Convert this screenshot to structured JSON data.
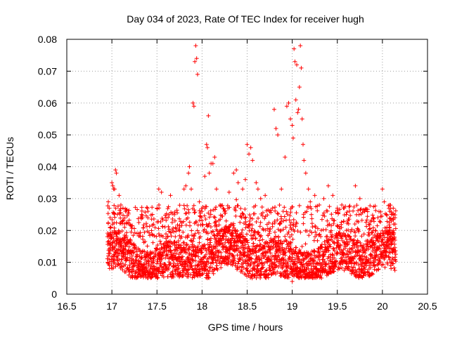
{
  "chart_data": {
    "type": "scatter",
    "title": "Day 034 of 2023, Rate Of TEC Index for receiver hugh",
    "xlabel": "GPS time / hours",
    "ylabel": "ROTI / TECUs",
    "xlim": [
      16.5,
      20.5
    ],
    "ylim": [
      0,
      0.08
    ],
    "xticks": [
      16.5,
      17,
      17.5,
      18,
      18.5,
      19,
      19.5,
      20,
      20.5
    ],
    "xtick_labels": [
      "16.5",
      "17",
      "17.5",
      "18",
      "18.5",
      "19",
      "19.5",
      "20",
      "20.5"
    ],
    "yticks": [
      0,
      0.01,
      0.02,
      0.03,
      0.04,
      0.05,
      0.06,
      0.07,
      0.08
    ],
    "ytick_labels": [
      "0",
      "0.01",
      "0.02",
      "0.03",
      "0.04",
      "0.05",
      "0.06",
      "0.07",
      "0.08"
    ],
    "grid": true,
    "marker": "+",
    "color": "#ff0000",
    "x_range_data": [
      16.95,
      20.15
    ],
    "points": [
      [
        16.96,
        0.029
      ],
      [
        16.97,
        0.027
      ],
      [
        16.98,
        0.024
      ],
      [
        16.99,
        0.021
      ],
      [
        17.0,
        0.035
      ],
      [
        17.01,
        0.034
      ],
      [
        17.02,
        0.033
      ],
      [
        17.03,
        0.033
      ],
      [
        17.04,
        0.039
      ],
      [
        17.05,
        0.038
      ],
      [
        17.08,
        0.031
      ],
      [
        17.1,
        0.028
      ],
      [
        17.12,
        0.023
      ],
      [
        17.15,
        0.026
      ],
      [
        17.2,
        0.022
      ],
      [
        17.3,
        0.019
      ],
      [
        17.4,
        0.026
      ],
      [
        17.45,
        0.025
      ],
      [
        17.5,
        0.027
      ],
      [
        17.52,
        0.033
      ],
      [
        17.55,
        0.032
      ],
      [
        17.6,
        0.024
      ],
      [
        17.65,
        0.031
      ],
      [
        17.7,
        0.023
      ],
      [
        17.75,
        0.02
      ],
      [
        17.8,
        0.033
      ],
      [
        17.82,
        0.034
      ],
      [
        17.85,
        0.038
      ],
      [
        17.86,
        0.04
      ],
      [
        17.88,
        0.033
      ],
      [
        17.9,
        0.06
      ],
      [
        17.91,
        0.059
      ],
      [
        17.92,
        0.073
      ],
      [
        17.93,
        0.078
      ],
      [
        17.94,
        0.074
      ],
      [
        17.95,
        0.069
      ],
      [
        17.97,
        0.029
      ],
      [
        18.0,
        0.026
      ],
      [
        18.03,
        0.037
      ],
      [
        18.05,
        0.047
      ],
      [
        18.06,
        0.046
      ],
      [
        18.07,
        0.056
      ],
      [
        18.08,
        0.038
      ],
      [
        18.1,
        0.041
      ],
      [
        18.12,
        0.041
      ],
      [
        18.14,
        0.043
      ],
      [
        18.16,
        0.033
      ],
      [
        18.2,
        0.028
      ],
      [
        18.25,
        0.026
      ],
      [
        18.3,
        0.032
      ],
      [
        18.35,
        0.038
      ],
      [
        18.38,
        0.039
      ],
      [
        18.4,
        0.035
      ],
      [
        18.45,
        0.033
      ],
      [
        18.48,
        0.036
      ],
      [
        18.5,
        0.047
      ],
      [
        18.52,
        0.044
      ],
      [
        18.54,
        0.046
      ],
      [
        18.56,
        0.042
      ],
      [
        18.6,
        0.035
      ],
      [
        18.62,
        0.033
      ],
      [
        18.65,
        0.03
      ],
      [
        18.7,
        0.031
      ],
      [
        18.75,
        0.026
      ],
      [
        18.8,
        0.058
      ],
      [
        18.82,
        0.052
      ],
      [
        18.84,
        0.05
      ],
      [
        18.88,
        0.033
      ],
      [
        18.92,
        0.043
      ],
      [
        18.94,
        0.059
      ],
      [
        18.96,
        0.06
      ],
      [
        18.98,
        0.055
      ],
      [
        19.0,
        0.053
      ],
      [
        19.01,
        0.049
      ],
      [
        19.02,
        0.077
      ],
      [
        19.03,
        0.073
      ],
      [
        19.04,
        0.061
      ],
      [
        19.05,
        0.072
      ],
      [
        19.06,
        0.057
      ],
      [
        19.07,
        0.058
      ],
      [
        19.08,
        0.065
      ],
      [
        19.09,
        0.078
      ],
      [
        19.1,
        0.071
      ],
      [
        19.11,
        0.055
      ],
      [
        19.12,
        0.047
      ],
      [
        19.13,
        0.042
      ],
      [
        19.15,
        0.038
      ],
      [
        19.18,
        0.033
      ],
      [
        19.2,
        0.029
      ],
      [
        19.25,
        0.031
      ],
      [
        19.3,
        0.028
      ],
      [
        19.35,
        0.03
      ],
      [
        19.4,
        0.034
      ],
      [
        19.45,
        0.031
      ],
      [
        19.5,
        0.027
      ],
      [
        19.55,
        0.028
      ],
      [
        19.6,
        0.025
      ],
      [
        19.7,
        0.034
      ],
      [
        19.75,
        0.03
      ],
      [
        19.8,
        0.026
      ],
      [
        19.85,
        0.022
      ],
      [
        19.9,
        0.024
      ],
      [
        19.95,
        0.019
      ],
      [
        20.0,
        0.033
      ],
      [
        20.02,
        0.029
      ],
      [
        20.05,
        0.021
      ],
      [
        20.1,
        0.025
      ],
      [
        20.12,
        0.027
      ],
      [
        20.14,
        0.022
      ],
      [
        19.0,
        0.004
      ]
    ]
  }
}
